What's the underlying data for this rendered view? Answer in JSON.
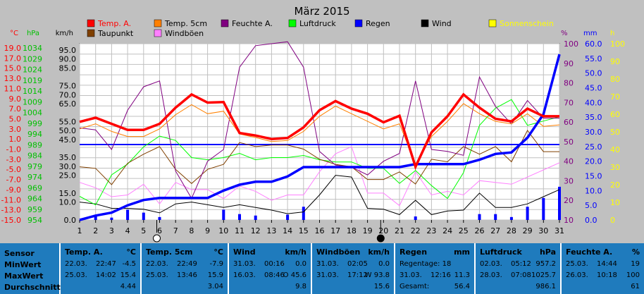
{
  "chart_data": {
    "type": "line",
    "title": "März 2015",
    "x": [
      1,
      2,
      3,
      4,
      5,
      6,
      7,
      8,
      9,
      10,
      11,
      12,
      13,
      14,
      15,
      16,
      17,
      18,
      19,
      20,
      21,
      22,
      23,
      24,
      25,
      26,
      27,
      28,
      29,
      30,
      31
    ],
    "axes_left": [
      {
        "label": "°C",
        "color": "#ff0000",
        "ticks": [
          "19.0",
          "17.0",
          "15.0",
          "13.0",
          "11.0",
          "9.0",
          "7.0",
          "5.0",
          "3.0",
          "1.0",
          "-1.0",
          "-3.0",
          "-5.0",
          "-7.0",
          "-9.0",
          "-11.0",
          "-13.0",
          "-15.0"
        ],
        "range": [
          -15,
          19
        ]
      },
      {
        "label": "hPa",
        "color": "#00c000",
        "ticks": [
          "1034",
          "1029",
          "1024",
          "1019",
          "1014",
          "1009",
          "1004",
          "999",
          "994",
          "989",
          "984",
          "979",
          "974",
          "969",
          "964",
          "959",
          "954"
        ],
        "range": [
          954,
          1034
        ]
      },
      {
        "label": "km/h",
        "color": "#000000",
        "ticks": [
          "95.0",
          "90.0",
          "85.0",
          "75.0",
          "70.0",
          "65.0",
          "55.0",
          "50.0",
          "45.0",
          "35.0",
          "30.0",
          "25.0",
          "15.0",
          "10.0",
          "0.0"
        ],
        "range": [
          0,
          95
        ]
      }
    ],
    "axes_right": [
      {
        "label": "%",
        "color": "#800080",
        "ticks": [
          "100",
          "90",
          "80",
          "70",
          "60",
          "50",
          "40",
          "30",
          "20",
          "10"
        ],
        "range": [
          10,
          100
        ]
      },
      {
        "label": "mm",
        "color": "#0000ff",
        "ticks": [
          "60.0",
          "55.0",
          "50.0",
          "45.0",
          "40.0",
          "35.0",
          "30.0",
          "25.0",
          "20.0",
          "15.0",
          "10.0",
          "5.0",
          "0.0"
        ],
        "range": [
          0,
          60
        ]
      },
      {
        "label": "h",
        "color": "#ffff00",
        "ticks": [
          "100",
          "90",
          "80",
          "70",
          "60",
          "50",
          "40",
          "30",
          "20",
          "10",
          "0"
        ],
        "range": [
          0,
          100
        ]
      }
    ],
    "legend_placement": "top",
    "legend": [
      {
        "name": "Temp. A.",
        "color": "#ff0000"
      },
      {
        "name": "Temp. 5cm",
        "color": "#ff8000"
      },
      {
        "name": "Feuchte A.",
        "color": "#800080"
      },
      {
        "name": "Luftdruck",
        "color": "#00ff00"
      },
      {
        "name": "Regen",
        "color": "#0000ff"
      },
      {
        "name": "Wind",
        "color": "#000000"
      },
      {
        "name": "Sonnenschein",
        "color": "#ffff00"
      },
      {
        "name": "Taupunkt",
        "color": "#804000"
      },
      {
        "name": "Windböen",
        "color": "#ff80ff"
      }
    ],
    "moon_phases": [
      {
        "day": 6,
        "phase": "new"
      },
      {
        "day": 20,
        "phase": "full"
      }
    ],
    "series": [
      {
        "name": "Temp. A.",
        "color": "#ff0000",
        "axis": "°C",
        "values": [
          4.4,
          5.2,
          4.0,
          2.8,
          2.8,
          4.0,
          7.2,
          9.8,
          8.2,
          8.3,
          2.2,
          1.7,
          1.0,
          1.2,
          3.3,
          6.7,
          8.5,
          7.0,
          6.0,
          4.3,
          5.6,
          -4.5,
          2.3,
          5.5,
          9.8,
          7.2,
          5.0,
          4.5,
          7.0,
          5.5,
          5.5
        ]
      },
      {
        "name": "Temp. 5cm",
        "color": "#ff8000",
        "axis": "°C",
        "values": [
          3.0,
          4.0,
          2.5,
          1.5,
          1.5,
          3.0,
          5.8,
          7.8,
          6.0,
          6.5,
          2.0,
          1.3,
          0.5,
          0.7,
          2.5,
          5.5,
          7.5,
          6.0,
          4.5,
          3.0,
          4.0,
          -4.0,
          1.5,
          4.5,
          8.0,
          6.0,
          4.5,
          4.0,
          6.0,
          3.5,
          3.8
        ]
      },
      {
        "name": "Taupunkt",
        "color": "#804000",
        "axis": "°C",
        "values": [
          -4.5,
          -4.8,
          -8.0,
          -3.8,
          -2.0,
          -0.5,
          -5.0,
          -7.8,
          -5.0,
          -4.0,
          0.3,
          -0.5,
          -0.2,
          -0.2,
          -1.0,
          -3.0,
          -4.0,
          -4.5,
          -7.0,
          -7.0,
          -5.5,
          -7.9,
          -3.0,
          -3.5,
          -0.5,
          -2.0,
          -0.5,
          -3.5,
          2.7,
          -1.5,
          -1.5
        ]
      },
      {
        "name": "Luftdruck",
        "color": "#00ff00",
        "axis": "hPa",
        "values": [
          965,
          961,
          975,
          980,
          988,
          993,
          991,
          983,
          982,
          983,
          985,
          982,
          983,
          983,
          984,
          982,
          981,
          981,
          978,
          978,
          971,
          977,
          970,
          964,
          976,
          998,
          1006,
          1010,
          998,
          1000,
          1002
        ]
      },
      {
        "name": "Feuchte A.",
        "color": "#800080",
        "axis": "%",
        "values": [
          57,
          56,
          46,
          66,
          78,
          81,
          35,
          21,
          40,
          46,
          88,
          99,
          100,
          101,
          88,
          45,
          38,
          37,
          33,
          40,
          44,
          81,
          46,
          45,
          43,
          83,
          68,
          59,
          71,
          62,
          62
        ]
      },
      {
        "name": "Regen",
        "color": "#0000ff",
        "axis": "mm",
        "values": [
          0.0,
          1.5,
          2.5,
          5.0,
          6.8,
          7.5,
          7.5,
          7.5,
          7.5,
          10.0,
          12.0,
          13.0,
          13.0,
          14.8,
          18.0,
          18.0,
          18.0,
          18.0,
          18.0,
          18.0,
          18.0,
          19.0,
          19.0,
          19.0,
          19.0,
          20.5,
          22.5,
          23.0,
          28.0,
          36.0,
          56.4
        ]
      },
      {
        "name": "Wind",
        "color": "#000000",
        "axis": "km/h",
        "values": [
          10.0,
          9.0,
          6.5,
          6.5,
          6.0,
          4.0,
          9.0,
          10.0,
          8.5,
          7.0,
          8.5,
          7.0,
          5.5,
          3.5,
          4.5,
          14.0,
          25.0,
          24.0,
          6.5,
          6.0,
          3.0,
          11.0,
          3.0,
          5.0,
          5.5,
          15.0,
          7.0,
          7.0,
          9.0,
          13.0,
          17.0
        ]
      },
      {
        "name": "Windböen",
        "color": "#ff80ff",
        "axis": "km/h",
        "values": [
          21.0,
          18.0,
          13.0,
          14.0,
          20.0,
          9.0,
          21.0,
          17.0,
          17.0,
          12.0,
          19.0,
          16.0,
          11.0,
          14.0,
          14.0,
          27.0,
          37.0,
          41.0,
          15.0,
          15.0,
          8.0,
          27.0,
          14.0,
          16.0,
          14.0,
          22.0,
          21.0,
          20.0,
          24.0,
          28.0,
          32.0
        ]
      }
    ],
    "bars": {
      "name": "Regen (Tag)",
      "color": "#0000ff",
      "axis": "mm",
      "values": [
        0.0,
        1.5,
        0.8,
        3.5,
        2.5,
        1.0,
        0,
        0,
        0,
        3.5,
        2.0,
        1.5,
        0,
        1.8,
        4.5,
        0,
        0,
        0,
        0,
        0,
        0,
        1.2,
        0,
        0,
        0,
        2.0,
        2.0,
        1.0,
        4.5,
        7.5,
        11.3
      ]
    }
  },
  "table": [
    {
      "hdr": "Temp. A.",
      "unit": "°C",
      "min_date": "22.03.",
      "min_time": "22:47",
      "min_val": "-4.5",
      "max_date": "25.03.",
      "max_time": "14:02",
      "max_val": "15.4",
      "avg": "4.44"
    },
    {
      "hdr": "Temp. 5cm",
      "unit": "°C",
      "min_date": "22.03.",
      "min_time": "22:49",
      "min_val": "-7.9",
      "max_date": "25.03.",
      "max_time": "13:46",
      "max_val": "15.9",
      "avg": "3.04"
    },
    {
      "hdr": "Wind",
      "unit": "km/h",
      "min_date": "31.03.",
      "min_time": "00:16",
      "min_val": "0.0",
      "max_date": "16.03.",
      "max_time": "08:46",
      "max_val": "O 45.6",
      "avg": "9.8"
    },
    {
      "hdr": "Windböen",
      "unit": "km/h",
      "min_date": "31.03.",
      "min_time": "02:05",
      "min_val": "0.0",
      "max_date": "31.03.",
      "max_time": "17:12",
      "max_val": "W 93.8",
      "avg": "15.6"
    },
    {
      "hdr": "Regen",
      "unit": "mm",
      "min_date": "Regentage: 18",
      "min_time": "",
      "min_val": "",
      "max_date": "31.03.",
      "max_time": "12:16",
      "max_val": "11.3",
      "avg_label": "Gesamt:",
      "avg": "56.4"
    },
    {
      "hdr": "Luftdruck",
      "unit": "hPa",
      "min_date": "02.03.",
      "min_time": "05:12",
      "min_val": "957.2",
      "max_date": "28.03.",
      "max_time": "07:08",
      "max_val": "1025.7",
      "avg": "986.1"
    },
    {
      "hdr": "Feuchte A.",
      "unit": "%",
      "min_date": "25.03.",
      "min_time": "14:44",
      "min_val": "19",
      "max_date": "26.03.",
      "max_time": "10:18",
      "max_val": "100",
      "avg": "61"
    }
  ],
  "table_labels": {
    "sensor": "Sensor",
    "min": "MinWert",
    "max": "MaxWert",
    "avg": "Durchschnitt"
  }
}
